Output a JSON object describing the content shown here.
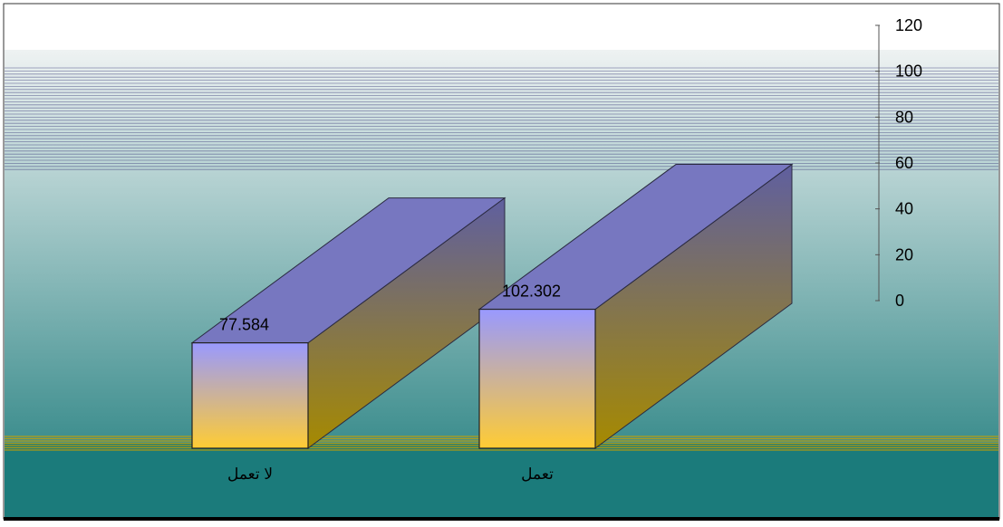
{
  "chart_data": {
    "type": "bar",
    "style": "3d",
    "categories": [
      "لا تعمل",
      "تعمل"
    ],
    "values": [
      77.584,
      102.302
    ],
    "data_labels": [
      "77.584",
      "102.302"
    ],
    "ylim": [
      0,
      120
    ],
    "y_ticks": [
      0,
      20,
      40,
      60,
      80,
      100,
      120
    ],
    "y_tick_labels": [
      "0",
      "20",
      "40",
      "60",
      "80",
      "100",
      "120"
    ],
    "y_axis_side": "right",
    "grid": true,
    "legend": "none",
    "title": "",
    "xlabel": "",
    "ylabel": ""
  },
  "colors": {
    "bar_top": "#7777c0",
    "bar_front_top": "#9999ff",
    "bar_front_bottom": "#ffcc33",
    "bar_side_top": "#5f5fa0",
    "bar_side_bottom": "#a68a00",
    "wall_top": "#eef2f2",
    "wall_bottom": "#1a7a7a",
    "floor": "#1b7b7b",
    "floor_line": "#c8a000"
  }
}
